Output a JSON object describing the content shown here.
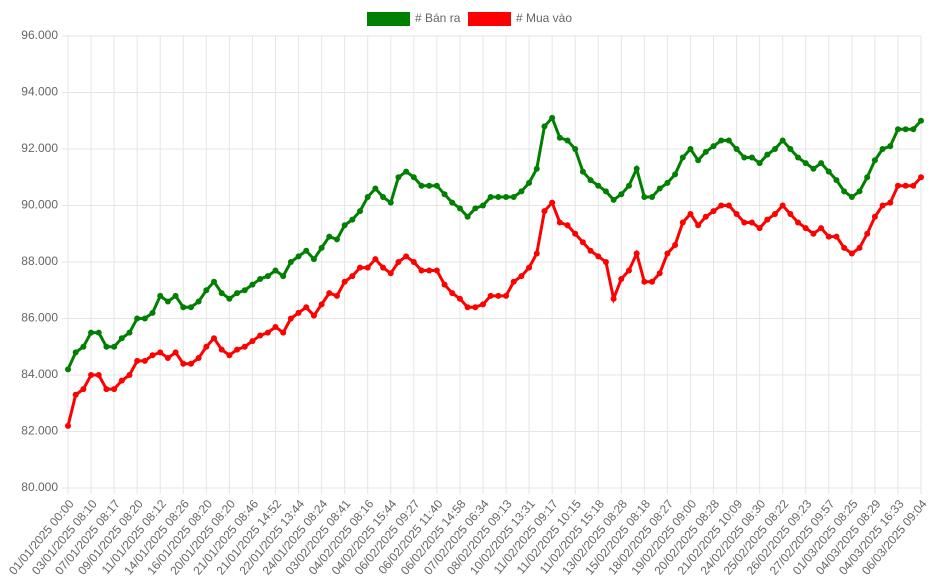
{
  "chart_data": {
    "type": "line",
    "categories": [
      "01/01/2025 00:00",
      null,
      null,
      "03/01/2025 08:10",
      null,
      null,
      "07/01/2025 08:17",
      null,
      null,
      "09/01/2025 08:20",
      null,
      null,
      "11/01/2025 08:12",
      null,
      null,
      "14/01/2025 08:26",
      null,
      null,
      "16/01/2025 08:20",
      null,
      null,
      "20/01/2025 08:20",
      null,
      null,
      "21/01/2025 08:46",
      null,
      null,
      "21/01/2025 14:52",
      null,
      null,
      "22/01/2025 13:44",
      null,
      null,
      "24/01/2025 08:24",
      null,
      null,
      "03/02/2025 08:41",
      null,
      null,
      "04/02/2025 08:16",
      null,
      null,
      "04/02/2025 15:44",
      null,
      null,
      "06/02/2025 09:27",
      null,
      null,
      "06/02/2025 11:40",
      null,
      null,
      "06/02/2025 14:58",
      null,
      null,
      "07/02/2025 06:34",
      null,
      null,
      "08/02/2025 09:13",
      null,
      null,
      "10/02/2025 13:31",
      null,
      null,
      "11/02/2025 09:17",
      null,
      null,
      "11/02/2025 10:15",
      null,
      null,
      "11/02/2025 15:18",
      null,
      null,
      "13/02/2025 08:28",
      null,
      null,
      "15/02/2025 08:18",
      null,
      null,
      "18/02/2025 08:27",
      null,
      null,
      "19/02/2025 09:00",
      null,
      null,
      "20/02/2025 08:28",
      null,
      null,
      "21/02/2025 10:09",
      null,
      null,
      "24/02/2025 08:30",
      null,
      null,
      "25/02/2025 08:22",
      null,
      null,
      "26/02/2025 09:23",
      null,
      null,
      "27/02/2025 09:57",
      null,
      null,
      "01/03/2025 08:25",
      null,
      null,
      "04/03/2025 08:29",
      null,
      null,
      "04/03/2025 16:33",
      null,
      null,
      "06/03/2025 09:04"
    ],
    "series": [
      {
        "name": "# Bán ra",
        "color": "#008000",
        "values": [
          84200,
          84800,
          85000,
          85500,
          85500,
          85000,
          85000,
          85300,
          85500,
          86000,
          86000,
          86200,
          86800,
          86600,
          86800,
          86400,
          86400,
          86600,
          87000,
          87300,
          86900,
          86700,
          86900,
          87000,
          87200,
          87400,
          87500,
          87700,
          87500,
          88000,
          88200,
          88400,
          88100,
          88500,
          88900,
          88800,
          89300,
          89500,
          89800,
          90300,
          90600,
          90300,
          90100,
          91000,
          91200,
          91000,
          90700,
          90700,
          90700,
          90400,
          90100,
          89900,
          89600,
          89900,
          90000,
          90300,
          90300,
          90300,
          90300,
          90500,
          90800,
          91300,
          92800,
          93100,
          92400,
          92300,
          92000,
          91200,
          90900,
          90700,
          90500,
          90200,
          90400,
          90700,
          91300,
          90300,
          90300,
          90600,
          90800,
          91100,
          91700,
          92000,
          91600,
          91900,
          92100,
          92300,
          92300,
          92000,
          91700,
          91700,
          91500,
          91800,
          92000,
          92300,
          92000,
          91700,
          91500,
          91300,
          91500,
          91200,
          90900,
          90500,
          90300,
          90500,
          91000,
          91600,
          92000,
          92100,
          92700,
          92700,
          92700,
          93000
        ]
      },
      {
        "name": "# Mua vào",
        "color": "#ff0000",
        "values": [
          82200,
          83300,
          83500,
          84000,
          84000,
          83500,
          83500,
          83800,
          84000,
          84500,
          84500,
          84700,
          84800,
          84600,
          84800,
          84400,
          84400,
          84600,
          85000,
          85300,
          84900,
          84700,
          84900,
          85000,
          85200,
          85400,
          85500,
          85700,
          85500,
          86000,
          86200,
          86400,
          86100,
          86500,
          86900,
          86800,
          87300,
          87500,
          87800,
          87800,
          88100,
          87800,
          87600,
          88000,
          88200,
          88000,
          87700,
          87700,
          87700,
          87200,
          86900,
          86700,
          86400,
          86400,
          86500,
          86800,
          86800,
          86800,
          87300,
          87500,
          87800,
          88300,
          89800,
          90100,
          89400,
          89300,
          89000,
          88700,
          88400,
          88200,
          88000,
          86700,
          87400,
          87700,
          88300,
          87300,
          87300,
          87600,
          88300,
          88600,
          89400,
          89700,
          89300,
          89600,
          89800,
          90000,
          90000,
          89700,
          89400,
          89400,
          89200,
          89500,
          89700,
          90000,
          89700,
          89400,
          89200,
          89000,
          89200,
          88900,
          88900,
          88500,
          88300,
          88500,
          89000,
          89600,
          90000,
          90100,
          90700,
          90700,
          90700,
          91000
        ]
      }
    ],
    "ylim": [
      80000,
      96000
    ],
    "yticks": [
      {
        "value": 80000,
        "label": "80.000"
      },
      {
        "value": 82000,
        "label": "82.000"
      },
      {
        "value": 84000,
        "label": "84.000"
      },
      {
        "value": 86000,
        "label": "86.000"
      },
      {
        "value": 88000,
        "label": "88.000"
      },
      {
        "value": 90000,
        "label": "90.000"
      },
      {
        "value": 92000,
        "label": "92.000"
      },
      {
        "value": 94000,
        "label": "94.000"
      },
      {
        "value": 96000,
        "label": "96.000"
      }
    ],
    "grid": true,
    "legend": "top"
  }
}
